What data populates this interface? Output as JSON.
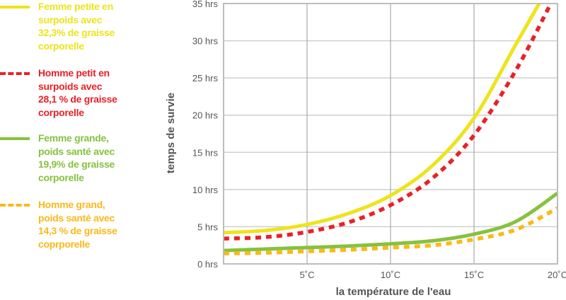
{
  "legend": {
    "items": [
      {
        "label_lines": [
          "Femme petite en",
          "surpoids avec",
          "32,3% de graisse",
          "corporelle"
        ],
        "color": "#ede41c",
        "style": "solid"
      },
      {
        "label_lines": [
          "Homme petit en",
          "surpoids avec",
          "28,1 % de graisse",
          "corporelle"
        ],
        "color": "#e82228",
        "style": "dashed"
      },
      {
        "label_lines": [
          "Femme grande,",
          "poids santé avec",
          "19,9% de graisse",
          "corporelle"
        ],
        "color": "#86c23f",
        "style": "solid"
      },
      {
        "label_lines": [
          "Homme grand,",
          "poids santé avec",
          "14,3 % de graisse",
          "coprporelle"
        ],
        "color": "#fbb919",
        "style": "dashed"
      }
    ]
  },
  "chart_data": {
    "type": "line",
    "title": "",
    "xlabel": "la température de l'eau",
    "ylabel": "temps de survie",
    "xlim": [
      0,
      20
    ],
    "ylim": [
      0,
      35
    ],
    "x_ticks": [
      5,
      10,
      15,
      20
    ],
    "x_tick_labels": [
      "5˚C",
      "10˚C",
      "15˚C",
      "20˚C"
    ],
    "y_ticks": [
      0,
      5,
      10,
      15,
      20,
      25,
      30,
      35
    ],
    "y_tick_labels": [
      "0 hrs",
      "5 hrs",
      "10 hrs",
      "15 hrs",
      "20 hrs",
      "25 hrs",
      "30 hrs",
      "35 hrs"
    ],
    "grid": true,
    "legend_position": "left",
    "x": [
      0,
      2.5,
      5,
      7.5,
      10,
      12.5,
      15,
      17.5,
      19.5,
      20
    ],
    "series": [
      {
        "name": "Femme petite en surpoids avec 32,3% de graisse corporelle",
        "color": "#ede41c",
        "style": "solid",
        "x": [
          0,
          2.5,
          5,
          7.5,
          10,
          12.5,
          15,
          17.5,
          18.9
        ],
        "values": [
          4.2,
          4.5,
          5.3,
          6.8,
          9.2,
          13.2,
          19.6,
          29.5,
          35
        ]
      },
      {
        "name": "Homme petit en surpoids avec 28,1 % de graisse corporelle",
        "color": "#e82228",
        "style": "dashed",
        "x": [
          0,
          2.5,
          5,
          7.5,
          10,
          12.5,
          15,
          17.5,
          19.6
        ],
        "values": [
          3.4,
          3.6,
          4.3,
          5.6,
          7.9,
          11.5,
          17.3,
          26.0,
          35
        ]
      },
      {
        "name": "Femme grande, poids santé avec 19,9% de graisse corporelle",
        "color": "#86c23f",
        "style": "solid",
        "x": [
          0,
          2.5,
          5,
          7.5,
          10,
          12.5,
          15,
          17.5,
          20
        ],
        "values": [
          1.8,
          2.0,
          2.2,
          2.4,
          2.7,
          3.1,
          4.0,
          5.7,
          9.5
        ]
      },
      {
        "name": "Homme grand, poids santé avec 14,3 % de graisse coprporelle",
        "color": "#fbb919",
        "style": "dashed",
        "x": [
          0,
          2.5,
          5,
          7.5,
          10,
          12.5,
          15,
          17.5,
          20
        ],
        "values": [
          1.4,
          1.5,
          1.7,
          1.9,
          2.2,
          2.5,
          3.3,
          4.6,
          7.5
        ]
      }
    ]
  }
}
